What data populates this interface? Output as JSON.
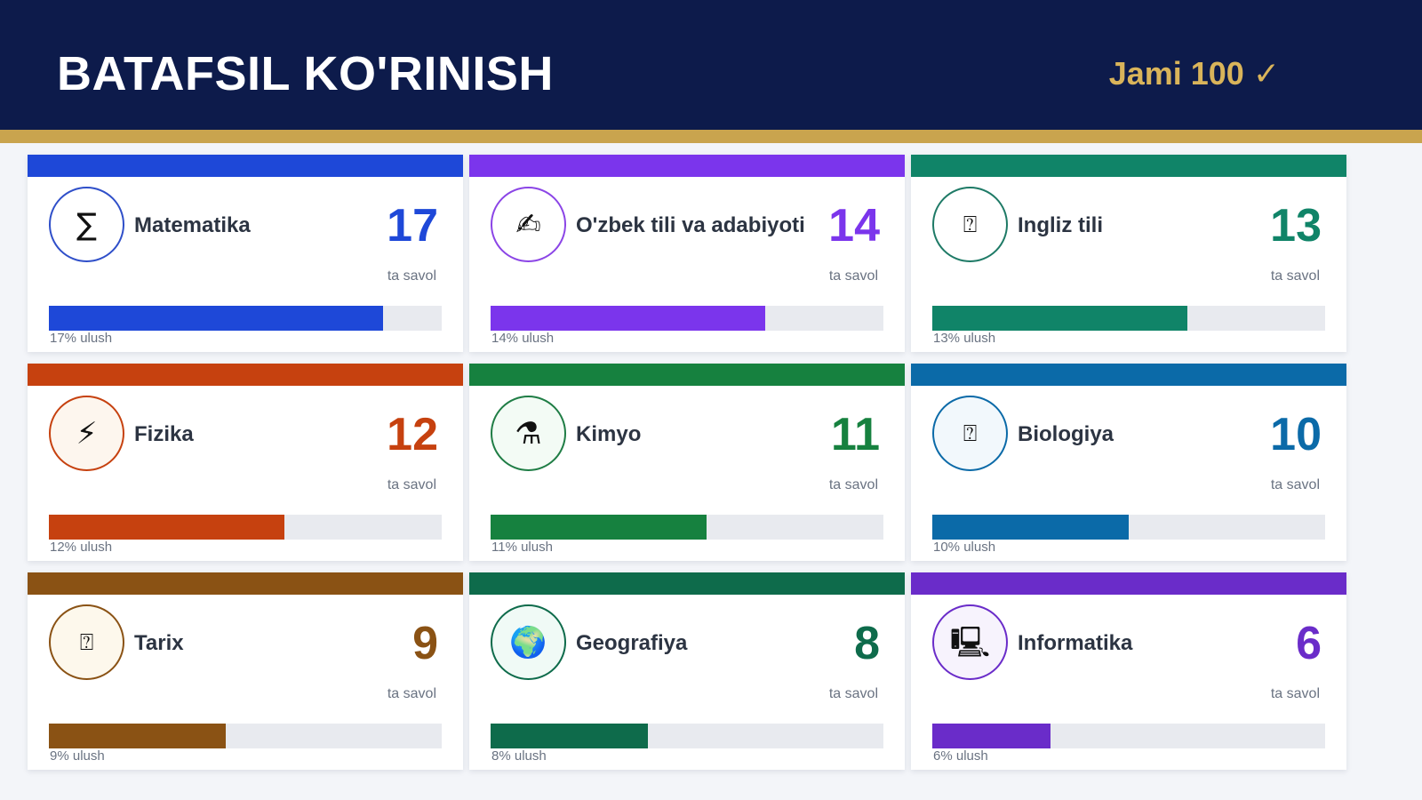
{
  "header": {
    "title": "BATAFSIL KO'RINISH",
    "total": "Jami 100 ✓"
  },
  "cards": [
    {
      "subject": "Matematika",
      "count": "17",
      "unit": "ta savol",
      "share": "17% ulush",
      "fraction": 0.85,
      "color": "#1e48d8",
      "icon": "sigma-icon",
      "glyph": "∑",
      "circle_bg": "#ffffff",
      "circle_border": "#2f4fc9"
    },
    {
      "subject": "O'zbek tili va adabiyoti",
      "count": "14",
      "unit": "ta savol",
      "share": "14% ulush",
      "fraction": 0.7,
      "color": "#7b35ec",
      "icon": "writing-hand-icon",
      "glyph": "✍",
      "circle_bg": "#ffffff",
      "circle_border": "#8b45e6"
    },
    {
      "subject": "Ingliz tili",
      "count": "13",
      "unit": "ta savol",
      "share": "13% ulush",
      "fraction": 0.65,
      "color": "#108468",
      "icon": "placeholder-box-icon",
      "glyph": "⍰",
      "circle_bg": "#ffffff",
      "circle_border": "#1e7a66"
    },
    {
      "subject": "Fizika",
      "count": "12",
      "unit": "ta savol",
      "share": "12% ulush",
      "fraction": 0.6,
      "color": "#c6410f",
      "icon": "lightning-icon",
      "glyph": "⚡",
      "circle_bg": "#fdf6ee",
      "circle_border": "#c6410f"
    },
    {
      "subject": "Kimyo",
      "count": "11",
      "unit": "ta savol",
      "share": "11% ulush",
      "fraction": 0.55,
      "color": "#16813f",
      "icon": "flask-icon",
      "glyph": "⚗",
      "circle_bg": "#f3fbf5",
      "circle_border": "#1f7d45"
    },
    {
      "subject": "Biologiya",
      "count": "10",
      "unit": "ta savol",
      "share": "10% ulush",
      "fraction": 0.5,
      "color": "#0b6aa8",
      "icon": "placeholder-box-icon",
      "glyph": "⍰",
      "circle_bg": "#f2f8fc",
      "circle_border": "#0b6aa8"
    },
    {
      "subject": "Tarix",
      "count": "9",
      "unit": "ta savol",
      "share": "9% ulush",
      "fraction": 0.45,
      "color": "#8a5214",
      "icon": "placeholder-box-icon",
      "glyph": "⍰",
      "circle_bg": "#fdf8ec",
      "circle_border": "#8a5214"
    },
    {
      "subject": "Geografiya",
      "count": "8",
      "unit": "ta savol",
      "share": "8% ulush",
      "fraction": 0.4,
      "color": "#0e6b4b",
      "icon": "globe-icon",
      "glyph": "🌍",
      "circle_bg": "#f0faf6",
      "circle_border": "#0e6b4b"
    },
    {
      "subject": "Informatika",
      "count": "6",
      "unit": "ta savol",
      "share": "6% ulush",
      "fraction": 0.3,
      "color": "#6a2cc9",
      "icon": "computer-icon",
      "glyph": "🖳",
      "circle_bg": "#f7f3fd",
      "circle_border": "#6a2cc9"
    }
  ]
}
